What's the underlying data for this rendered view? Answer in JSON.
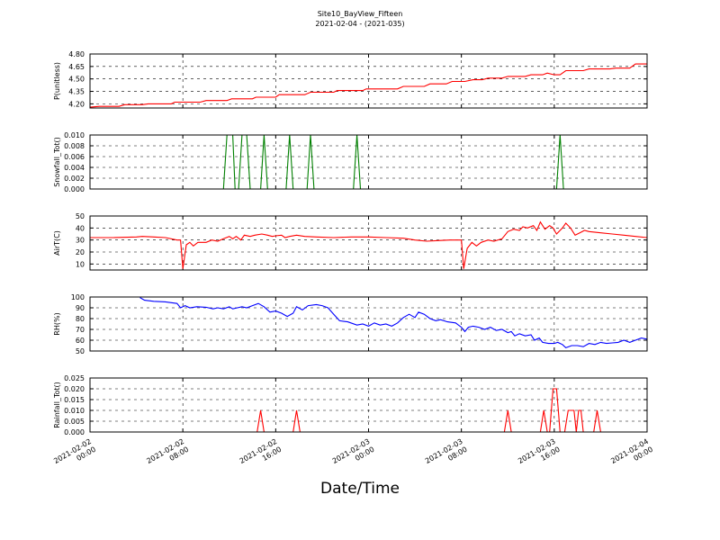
{
  "title": "Site10_BayView_Fifteen",
  "subtitle": "2021-02-04 - (2021-035)",
  "xlabel": "Date/Time",
  "x_ticks": [
    {
      "t": 0,
      "label": "2021-02-02\n00:00"
    },
    {
      "t": 8,
      "label": "2021-02-02\n08:00"
    },
    {
      "t": 16,
      "label": "2021-02-02\n16:00"
    },
    {
      "t": 24,
      "label": "2021-02-03\n00:00"
    },
    {
      "t": 32,
      "label": "2021-02-03\n08:00"
    },
    {
      "t": 40,
      "label": "2021-02-03\n16:00"
    },
    {
      "t": 48,
      "label": "2021-02-04\n00:00"
    }
  ],
  "chart_data": [
    {
      "type": "line",
      "ylabel": "P(unitless)",
      "xlim": [
        "2021-02-02 00:00",
        "2021-02-04 00:00"
      ],
      "ylim": [
        4.15,
        4.8
      ],
      "yticks": [
        4.2,
        4.35,
        4.5,
        4.65,
        4.8
      ],
      "ytick_labels": [
        "4.20",
        "4.35",
        "4.50",
        "4.65",
        "4.80"
      ],
      "grid": true,
      "color": "#ff0000",
      "points": [
        [
          0,
          4.16
        ],
        [
          0.8,
          4.17
        ],
        [
          2.5,
          4.17
        ],
        [
          3,
          4.19
        ],
        [
          4.5,
          4.19
        ],
        [
          5,
          4.2
        ],
        [
          7,
          4.2
        ],
        [
          7.3,
          4.22
        ],
        [
          9.5,
          4.22
        ],
        [
          10,
          4.24
        ],
        [
          11.8,
          4.24
        ],
        [
          12.2,
          4.26
        ],
        [
          14,
          4.26
        ],
        [
          14.3,
          4.28
        ],
        [
          16,
          4.28
        ],
        [
          16.3,
          4.31
        ],
        [
          18.5,
          4.31
        ],
        [
          19,
          4.34
        ],
        [
          21,
          4.34
        ],
        [
          21.3,
          4.36
        ],
        [
          23.5,
          4.36
        ],
        [
          23.8,
          4.38
        ],
        [
          26.5,
          4.38
        ],
        [
          27,
          4.41
        ],
        [
          28.8,
          4.41
        ],
        [
          29.3,
          4.44
        ],
        [
          30.7,
          4.44
        ],
        [
          31.2,
          4.47
        ],
        [
          32.3,
          4.47
        ],
        [
          33,
          4.49
        ],
        [
          33.8,
          4.49
        ],
        [
          34.3,
          4.51
        ],
        [
          35.5,
          4.51
        ],
        [
          36,
          4.53
        ],
        [
          37.5,
          4.53
        ],
        [
          38,
          4.55
        ],
        [
          39,
          4.55
        ],
        [
          39.4,
          4.57
        ],
        [
          40,
          4.55
        ],
        [
          40.5,
          4.55
        ],
        [
          41,
          4.6
        ],
        [
          42.5,
          4.6
        ],
        [
          43,
          4.62
        ],
        [
          44.8,
          4.62
        ],
        [
          45.3,
          4.63
        ],
        [
          46.5,
          4.63
        ],
        [
          47,
          4.68
        ],
        [
          48,
          4.68
        ]
      ]
    },
    {
      "type": "line",
      "ylabel": "Snowfall_Tot()",
      "xlim": [
        "2021-02-02 00:00",
        "2021-02-04 00:00"
      ],
      "ylim": [
        0,
        0.01
      ],
      "yticks": [
        0,
        0.002,
        0.004,
        0.006,
        0.008,
        0.01
      ],
      "ytick_labels": [
        "0.000",
        "0.002",
        "0.004",
        "0.006",
        "0.008",
        "0.010"
      ],
      "grid": true,
      "color": "#008000",
      "points": [
        [
          0,
          0
        ],
        [
          11.5,
          0
        ],
        [
          11.8,
          0.01
        ],
        [
          12.3,
          0.01
        ],
        [
          12.5,
          0
        ],
        [
          12.8,
          0
        ],
        [
          13.1,
          0.01
        ],
        [
          13.5,
          0.01
        ],
        [
          13.8,
          0
        ],
        [
          14.7,
          0
        ],
        [
          15,
          0.01
        ],
        [
          15.3,
          0
        ],
        [
          16.9,
          0
        ],
        [
          17.2,
          0.01
        ],
        [
          17.5,
          0
        ],
        [
          18.7,
          0
        ],
        [
          19,
          0.01
        ],
        [
          19.3,
          0
        ],
        [
          22.7,
          0
        ],
        [
          23,
          0.01
        ],
        [
          23.3,
          0
        ],
        [
          40.2,
          0
        ],
        [
          40.5,
          0.01
        ],
        [
          40.8,
          0
        ],
        [
          48,
          0
        ]
      ]
    },
    {
      "type": "line",
      "ylabel": "AirT(C)",
      "xlim": [
        "2021-02-02 00:00",
        "2021-02-04 00:00"
      ],
      "ylim": [
        5,
        50
      ],
      "yticks": [
        10,
        20,
        30,
        40,
        50
      ],
      "ytick_labels": [
        "10",
        "20",
        "30",
        "40",
        "50"
      ],
      "grid": true,
      "color": "#ff0000",
      "points": [
        [
          0,
          32
        ],
        [
          2,
          32
        ],
        [
          4,
          32.5
        ],
        [
          4.5,
          33
        ],
        [
          5.5,
          32.5
        ],
        [
          6.5,
          32
        ],
        [
          7.5,
          30
        ],
        [
          7.8,
          30
        ],
        [
          8,
          6
        ],
        [
          8.3,
          26
        ],
        [
          8.6,
          28
        ],
        [
          8.9,
          25
        ],
        [
          9.3,
          28
        ],
        [
          10,
          28
        ],
        [
          10.5,
          30
        ],
        [
          11,
          29
        ],
        [
          11.5,
          31
        ],
        [
          12,
          33
        ],
        [
          12.3,
          31
        ],
        [
          12.6,
          33
        ],
        [
          13,
          30
        ],
        [
          13.3,
          34
        ],
        [
          13.8,
          33
        ],
        [
          14.2,
          34
        ],
        [
          14.8,
          35
        ],
        [
          15.3,
          34
        ],
        [
          15.7,
          33
        ],
        [
          16,
          33.5
        ],
        [
          16.5,
          34
        ],
        [
          16.8,
          32
        ],
        [
          17.2,
          33
        ],
        [
          17.8,
          34
        ],
        [
          18.5,
          33
        ],
        [
          19.5,
          32.5
        ],
        [
          21,
          32
        ],
        [
          22.5,
          32.5
        ],
        [
          24,
          32.5
        ],
        [
          25.5,
          32
        ],
        [
          27,
          31.5
        ],
        [
          28,
          30
        ],
        [
          29,
          29
        ],
        [
          30,
          29.5
        ],
        [
          31,
          30
        ],
        [
          32,
          30
        ],
        [
          32.2,
          6
        ],
        [
          32.5,
          23
        ],
        [
          32.9,
          28
        ],
        [
          33.3,
          25
        ],
        [
          33.7,
          28
        ],
        [
          34.3,
          30
        ],
        [
          34.8,
          29
        ],
        [
          35.5,
          31
        ],
        [
          36,
          37
        ],
        [
          36.5,
          39
        ],
        [
          37,
          38
        ],
        [
          37.3,
          41
        ],
        [
          37.7,
          40
        ],
        [
          38.2,
          42
        ],
        [
          38.5,
          38
        ],
        [
          38.8,
          45
        ],
        [
          39.2,
          39
        ],
        [
          39.6,
          42
        ],
        [
          39.9,
          40
        ],
        [
          40.2,
          35
        ],
        [
          40.5,
          38
        ],
        [
          40.7,
          40
        ],
        [
          41,
          44
        ],
        [
          41.4,
          40
        ],
        [
          41.8,
          34
        ],
        [
          42.2,
          36
        ],
        [
          42.6,
          38
        ],
        [
          43,
          37
        ],
        [
          44,
          36
        ],
        [
          45,
          35
        ],
        [
          46,
          34
        ],
        [
          47,
          33
        ],
        [
          48,
          32
        ]
      ]
    },
    {
      "type": "line",
      "ylabel": "RH(%)",
      "xlim": [
        "2021-02-02 00:00",
        "2021-02-04 00:00"
      ],
      "ylim": [
        50,
        100
      ],
      "yticks": [
        50,
        60,
        70,
        80,
        90,
        100
      ],
      "ytick_labels": [
        "50",
        "60",
        "70",
        "80",
        "90",
        "100"
      ],
      "grid": true,
      "color": "#0000ff",
      "points": [
        [
          4.3,
          99.5
        ],
        [
          4.7,
          97
        ],
        [
          5.5,
          96
        ],
        [
          6.5,
          95.5
        ],
        [
          7.5,
          94
        ],
        [
          7.8,
          90
        ],
        [
          8.2,
          92
        ],
        [
          8.6,
          90
        ],
        [
          9.2,
          91
        ],
        [
          10,
          90.5
        ],
        [
          10.6,
          89
        ],
        [
          11,
          90
        ],
        [
          11.5,
          89
        ],
        [
          12,
          91
        ],
        [
          12.3,
          89
        ],
        [
          12.7,
          90
        ],
        [
          13.1,
          91
        ],
        [
          13.5,
          90
        ],
        [
          14,
          92
        ],
        [
          14.5,
          94
        ],
        [
          15,
          91
        ],
        [
          15.5,
          86
        ],
        [
          16,
          87
        ],
        [
          16.5,
          85
        ],
        [
          17,
          82
        ],
        [
          17.5,
          85
        ],
        [
          17.8,
          91
        ],
        [
          18.3,
          88
        ],
        [
          18.8,
          92
        ],
        [
          19.5,
          93
        ],
        [
          20,
          92
        ],
        [
          20.5,
          90
        ],
        [
          21,
          84
        ],
        [
          21.5,
          78
        ],
        [
          22.2,
          77
        ],
        [
          23,
          74
        ],
        [
          23.5,
          75
        ],
        [
          24,
          73
        ],
        [
          24.5,
          76
        ],
        [
          25,
          74
        ],
        [
          25.5,
          75
        ],
        [
          26,
          73
        ],
        [
          26.5,
          76
        ],
        [
          27,
          81
        ],
        [
          27.5,
          84
        ],
        [
          28,
          81
        ],
        [
          28.3,
          86
        ],
        [
          28.8,
          84
        ],
        [
          29.3,
          80
        ],
        [
          29.8,
          78
        ],
        [
          30.2,
          79
        ],
        [
          30.8,
          77
        ],
        [
          31.5,
          76
        ],
        [
          32,
          72
        ],
        [
          32.3,
          68
        ],
        [
          32.6,
          72
        ],
        [
          33,
          73
        ],
        [
          33.5,
          72
        ],
        [
          34,
          70
        ],
        [
          34.5,
          72
        ],
        [
          35,
          69
        ],
        [
          35.5,
          70
        ],
        [
          36,
          67
        ],
        [
          36.3,
          68
        ],
        [
          36.6,
          64
        ],
        [
          37,
          66
        ],
        [
          37.5,
          64
        ],
        [
          38,
          65
        ],
        [
          38.3,
          60
        ],
        [
          38.7,
          62
        ],
        [
          39,
          58
        ],
        [
          39.5,
          57
        ],
        [
          40,
          57
        ],
        [
          40.3,
          58
        ],
        [
          40.7,
          56
        ],
        [
          41,
          53
        ],
        [
          41.5,
          55
        ],
        [
          42,
          55
        ],
        [
          42.5,
          54
        ],
        [
          43,
          57
        ],
        [
          43.5,
          56
        ],
        [
          44,
          58
        ],
        [
          44.5,
          57
        ],
        [
          45,
          57.5
        ],
        [
          45.5,
          58
        ],
        [
          46,
          60
        ],
        [
          46.5,
          58
        ],
        [
          47,
          60
        ],
        [
          47.5,
          62
        ],
        [
          48,
          61
        ]
      ]
    },
    {
      "type": "line",
      "ylabel": "Rainfall_Tot()",
      "xlim": [
        "2021-02-02 00:00",
        "2021-02-04 00:00"
      ],
      "ylim": [
        0,
        0.025
      ],
      "yticks": [
        0,
        0.005,
        0.01,
        0.015,
        0.02,
        0.025
      ],
      "ytick_labels": [
        "0.000",
        "0.005",
        "0.010",
        "0.015",
        "0.020",
        "0.025"
      ],
      "grid": true,
      "color": "#ff0000",
      "points": [
        [
          0,
          0
        ],
        [
          14.4,
          0
        ],
        [
          14.7,
          0.01
        ],
        [
          15,
          0
        ],
        [
          17.2,
          0
        ],
        [
          17.5,
          0
        ],
        [
          17.8,
          0.01
        ],
        [
          18.1,
          0
        ],
        [
          35.7,
          0
        ],
        [
          36,
          0.01
        ],
        [
          36.3,
          0
        ],
        [
          38.8,
          0
        ],
        [
          39.1,
          0.01
        ],
        [
          39.4,
          0
        ],
        [
          39.6,
          0
        ],
        [
          39.9,
          0.02
        ],
        [
          40.2,
          0.02
        ],
        [
          40.5,
          0
        ],
        [
          40.9,
          0
        ],
        [
          41.2,
          0.01
        ],
        [
          41.7,
          0.01
        ],
        [
          41.9,
          0
        ],
        [
          42.1,
          0.01
        ],
        [
          42.3,
          0.01
        ],
        [
          42.5,
          0
        ],
        [
          43.4,
          0
        ],
        [
          43.7,
          0.01
        ],
        [
          44,
          0
        ],
        [
          48,
          0
        ]
      ]
    }
  ]
}
